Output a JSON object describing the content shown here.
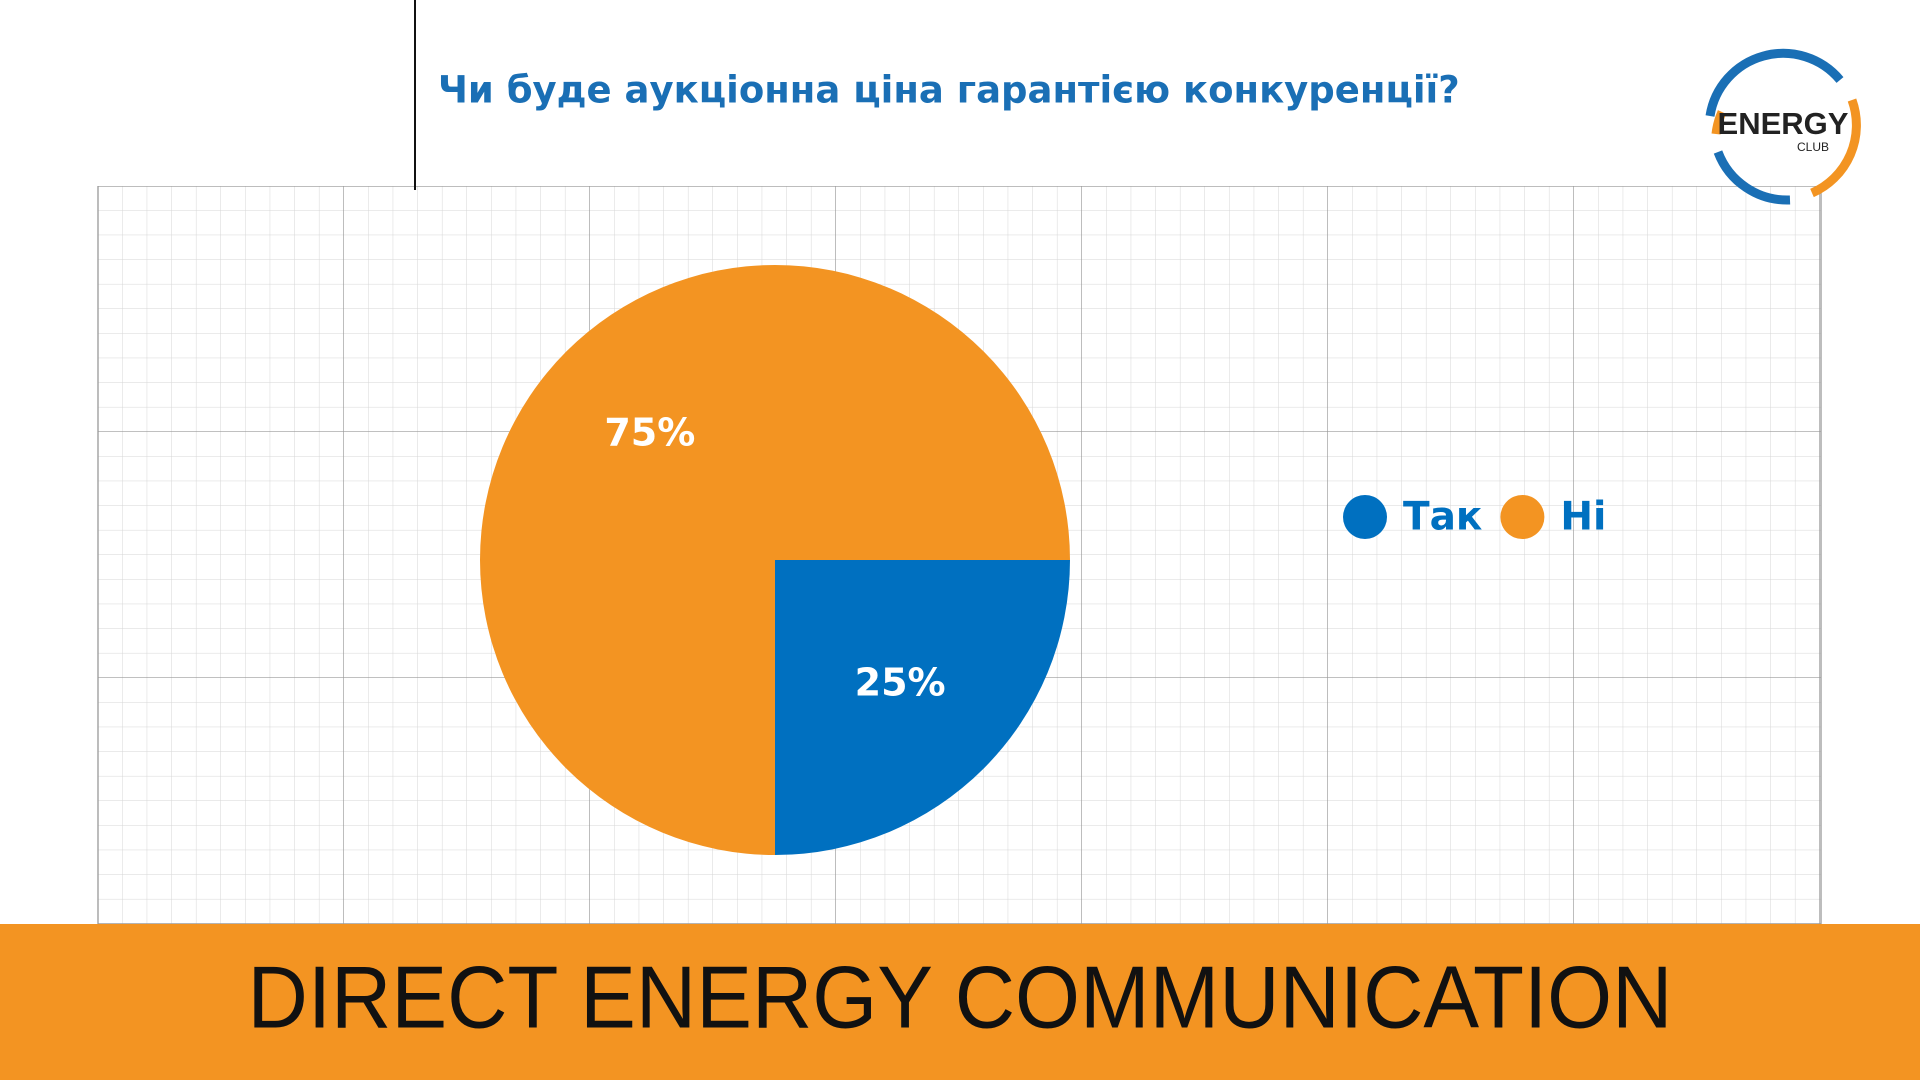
{
  "chart_data": {
    "type": "pie",
    "title": "Чи буде аукціонна ціна гарантією конкуренції?",
    "categories": [
      "Так",
      "Ні"
    ],
    "values": [
      25,
      75
    ],
    "value_labels": [
      "25%",
      "75%"
    ],
    "colors": [
      "#0070c0",
      "#f39422"
    ],
    "legend": "right"
  },
  "logo": {
    "title": "ENERGY",
    "subtitle": "CLUB"
  },
  "footer": "DIRECT ENERGY COMMUNICATION"
}
